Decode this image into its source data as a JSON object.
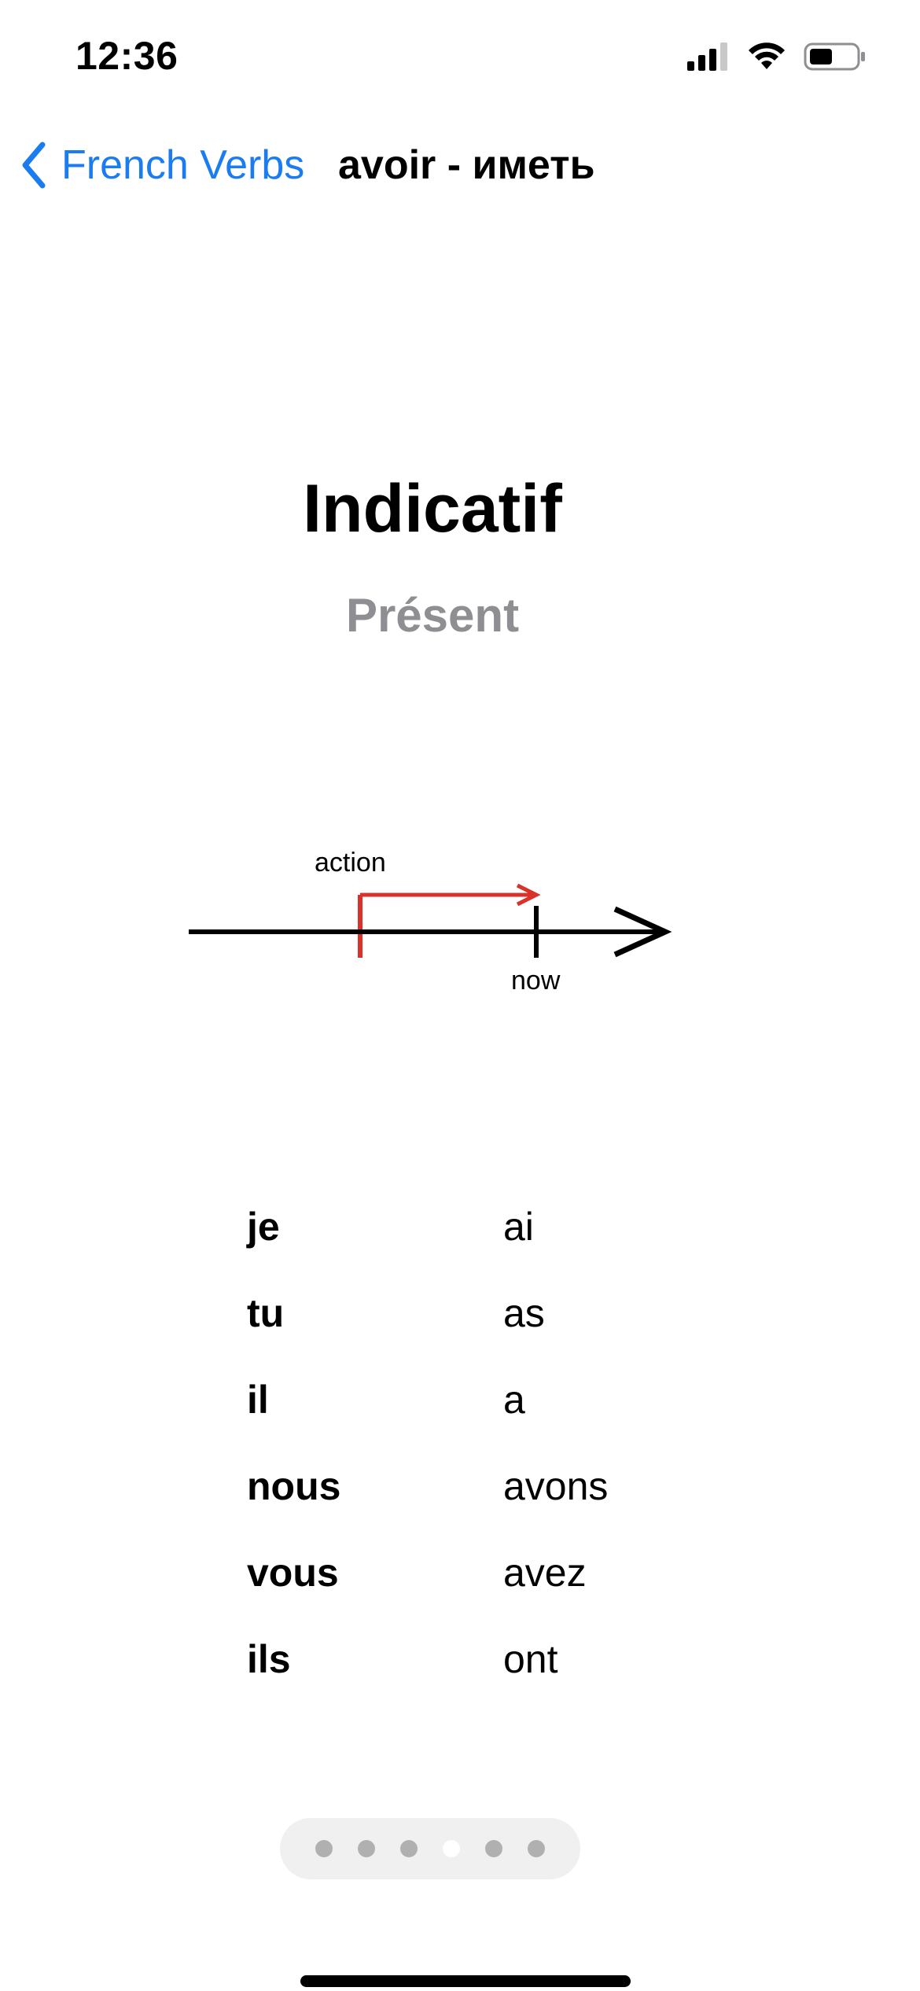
{
  "status_bar": {
    "time": "12:36"
  },
  "nav": {
    "back_label": "French Verbs",
    "title": "avoir - иметь"
  },
  "mood": "Indicatif",
  "tense": "Présent",
  "diagram": {
    "action_label": "action",
    "now_label": "now",
    "action_color": "#d9322b"
  },
  "conjugation": [
    {
      "pronoun": "je",
      "form": "ai"
    },
    {
      "pronoun": "tu",
      "form": "as"
    },
    {
      "pronoun": "il",
      "form": "a"
    },
    {
      "pronoun": "nous",
      "form": "avons"
    },
    {
      "pronoun": "vous",
      "form": "avez"
    },
    {
      "pronoun": "ils",
      "form": "ont"
    }
  ],
  "page_indicator": {
    "count": 6,
    "active_index": 3
  },
  "colors": {
    "accent": "#1a7cf0",
    "secondary_text": "#8e8e93"
  }
}
